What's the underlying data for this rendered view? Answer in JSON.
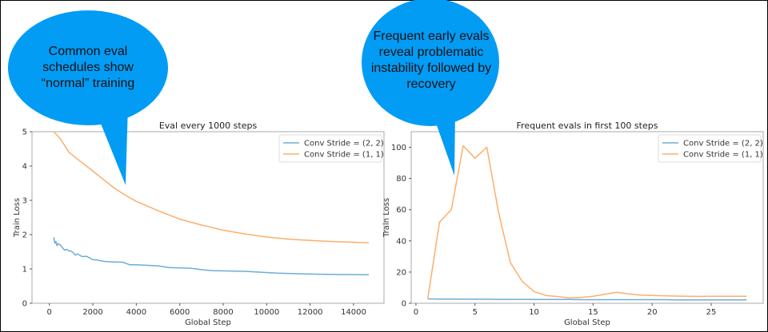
{
  "colors": {
    "series_a": "#6baed6",
    "series_b": "#fdae6b",
    "bubble": "#039cf5"
  },
  "callouts": [
    {
      "text": "Common eval schedules show “normal” training"
    },
    {
      "text": "Frequent early evals reveal problematic instability followed by recovery"
    }
  ],
  "chart_data": [
    {
      "type": "line",
      "title": "Eval every 1000 steps",
      "xlabel": "Global Step",
      "ylabel": "Train Loss",
      "xlim": [
        -800,
        15400
      ],
      "ylim": [
        0,
        5
      ],
      "xticks": [
        0,
        2000,
        4000,
        6000,
        8000,
        10000,
        12000,
        14000
      ],
      "yticks": [
        0,
        1,
        2,
        3,
        4,
        5
      ],
      "grid": false,
      "legend": "top-right",
      "series": [
        {
          "name": "Conv Stride =  (2, 2)",
          "x": [
            200,
            250,
            300,
            350,
            400,
            500,
            600,
            700,
            800,
            900,
            1000,
            1100,
            1200,
            1300,
            1500,
            1700,
            1800,
            2000,
            2200,
            2500,
            3000,
            3300,
            3400,
            3700,
            4000,
            5000,
            5500,
            6500,
            7000,
            7500,
            9000,
            10500,
            12000,
            13000,
            14700
          ],
          "y": [
            1.92,
            1.75,
            1.8,
            1.68,
            1.74,
            1.7,
            1.62,
            1.55,
            1.57,
            1.53,
            1.52,
            1.47,
            1.4,
            1.44,
            1.36,
            1.37,
            1.34,
            1.27,
            1.26,
            1.22,
            1.2,
            1.2,
            1.19,
            1.12,
            1.12,
            1.09,
            1.04,
            1.02,
            0.98,
            0.95,
            0.93,
            0.88,
            0.85,
            0.84,
            0.83
          ]
        },
        {
          "name": "Conv Stride =  (1, 1)",
          "x": [
            200,
            500,
            900,
            1500,
            2000,
            2500,
            3000,
            3500,
            4000,
            5000,
            6000,
            7000,
            8000,
            9000,
            10000,
            11000,
            12000,
            13000,
            14700
          ],
          "y": [
            5.0,
            4.8,
            4.4,
            4.1,
            3.85,
            3.6,
            3.35,
            3.15,
            2.97,
            2.7,
            2.45,
            2.28,
            2.13,
            2.02,
            1.93,
            1.87,
            1.83,
            1.8,
            1.76
          ]
        }
      ]
    },
    {
      "type": "line",
      "title": "Frequent evals in first 100 steps",
      "xlabel": "Global Step",
      "ylabel": "Train Loss",
      "xlim": [
        -0.4,
        29.4
      ],
      "ylim": [
        0,
        110
      ],
      "xticks": [
        0,
        5,
        10,
        15,
        20,
        25
      ],
      "yticks": [
        0,
        20,
        40,
        60,
        80,
        100
      ],
      "grid": false,
      "legend": "top-right",
      "series": [
        {
          "name": "Conv Stride =  (2, 2)",
          "x": [
            1,
            2,
            3,
            4,
            5,
            6,
            7,
            8,
            9,
            10,
            11,
            12,
            13,
            14,
            15,
            16,
            17,
            18,
            19,
            20,
            21,
            22,
            23,
            24,
            25,
            26,
            27,
            28
          ],
          "y": [
            2.8,
            2.7,
            2.7,
            2.6,
            2.6,
            2.6,
            2.5,
            2.5,
            2.5,
            2.4,
            2.4,
            2.4,
            2.4,
            2.3,
            2.3,
            2.3,
            2.3,
            2.3,
            2.3,
            2.3,
            2.3,
            2.2,
            2.2,
            2.2,
            2.2,
            2.2,
            2.2,
            2.2
          ]
        },
        {
          "name": "Conv Stride =  (1, 1)",
          "x": [
            1,
            2,
            3,
            4,
            5,
            6,
            7,
            8,
            9,
            10,
            11,
            12,
            13,
            14,
            15,
            16,
            17,
            18,
            19,
            20,
            21,
            22,
            23,
            24,
            25,
            26,
            27,
            28
          ],
          "y": [
            3,
            52,
            60,
            101,
            93,
            100,
            58,
            26,
            14,
            7.5,
            5,
            4.3,
            3.5,
            3.8,
            4.5,
            5.8,
            7,
            6,
            5.2,
            5,
            4.8,
            4.6,
            4.5,
            4.4,
            4.5,
            4.5,
            4.5,
            4.5
          ]
        }
      ]
    }
  ]
}
